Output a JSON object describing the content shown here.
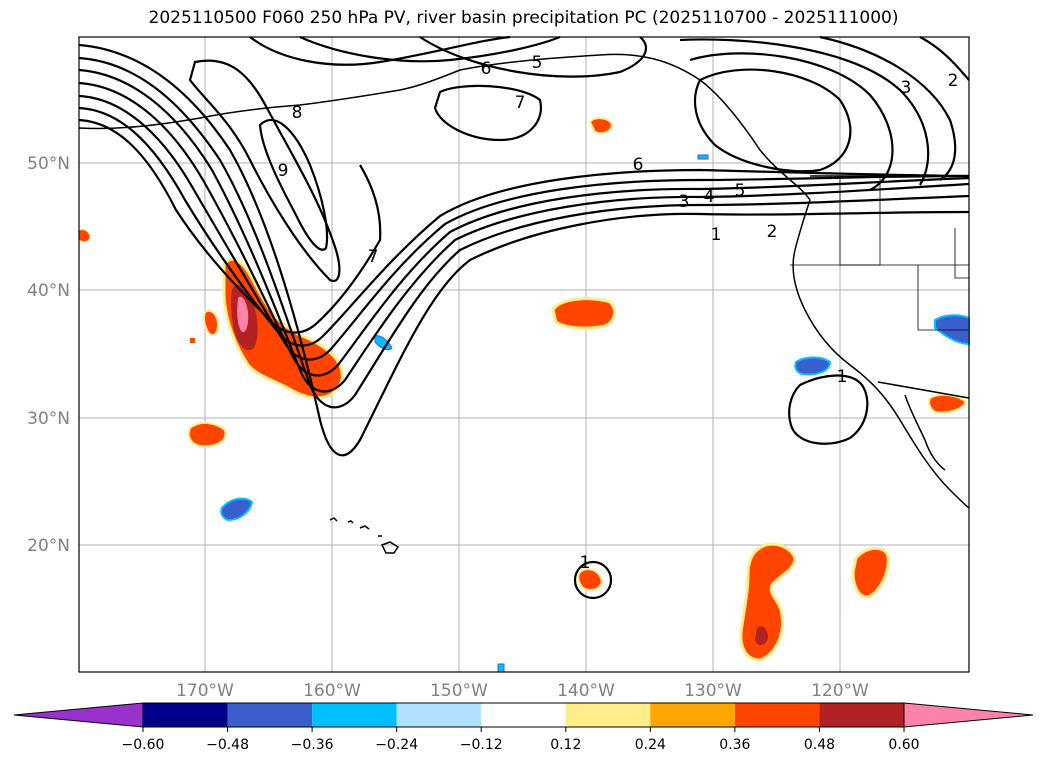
{
  "title": "2025110500 F060 250 hPa PV, river basin precipitation PC (2025110700 - 2025111000)",
  "map": {
    "lat_labels": [
      "50°N",
      "40°N",
      "30°N",
      "20°N"
    ],
    "lon_labels": [
      "170°W",
      "160°W",
      "150°W",
      "140°W",
      "130°W",
      "120°W"
    ],
    "contour_labels": [
      "6",
      "5",
      "7",
      "8",
      "9",
      "7",
      "6",
      "5",
      "4",
      "3",
      "1",
      "2",
      "3",
      "2",
      "1",
      "1"
    ]
  },
  "colorbar": {
    "colors": [
      "#9932cc",
      "#00008b",
      "#3a5fcd",
      "#00bfff",
      "#b0e2ff",
      "#ffffff",
      "#ffec8b",
      "#ffa500",
      "#ff4500",
      "#b22222",
      "#ff82ab",
      "#ff82ab"
    ],
    "tick_labels": [
      "−0.60",
      "−0.48",
      "−0.36",
      "−0.24",
      "−0.12",
      "0.12",
      "0.24",
      "0.36",
      "0.48",
      "0.60"
    ]
  }
}
